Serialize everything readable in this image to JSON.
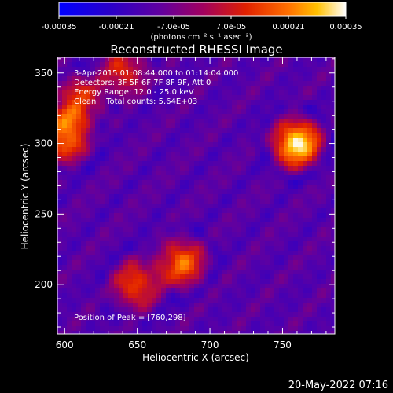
{
  "colorbar": {
    "tick_labels": [
      "-0.00035",
      "-0.00021",
      "-7.0e-05",
      "7.0e-05",
      "0.00021",
      "0.00035"
    ],
    "unit_label": "(photons cm⁻² s⁻¹ asec⁻²)",
    "range": [
      -0.00035,
      0.00035
    ],
    "colors": [
      "#0000ff",
      "#2a00c8",
      "#6000a0",
      "#a00060",
      "#e02000",
      "#ff7000",
      "#ffc000",
      "#ffffff"
    ]
  },
  "chart_data": {
    "type": "heatmap",
    "title": "Reconstructed RHESSI Image",
    "xlabel": "Heliocentric X (arcsec)",
    "ylabel": "Heliocentric Y (arcsec)",
    "xlim": [
      595,
      786
    ],
    "ylim": [
      165,
      361
    ],
    "x_ticks": [
      600,
      650,
      700,
      750
    ],
    "y_ticks": [
      200,
      250,
      300,
      350
    ],
    "peak": [
      760,
      298
    ],
    "sources": [
      {
        "x": 760,
        "y": 300,
        "peak": 1.0
      },
      {
        "x": 600,
        "y": 305,
        "peak": 0.8
      },
      {
        "x": 610,
        "y": 330,
        "peak": 0.6
      },
      {
        "x": 680,
        "y": 215,
        "peak": 0.7
      },
      {
        "x": 650,
        "y": 200,
        "peak": 0.6
      },
      {
        "x": 640,
        "y": 350,
        "peak": 0.5
      }
    ]
  },
  "annotations": {
    "time_range": "3-Apr-2015 01:08:44.000 to 01:14:04.000",
    "detectors": "Detectors: 3F 5F 6F 7F 8F 9F, Att 0",
    "energy_range": "Energy Range: 12.0 - 25.0 keV",
    "method": "Clean    Total counts: 5.64E+03",
    "peak_position": "Position of Peak = [760,298]"
  },
  "footer": {
    "date": "20-May-2022 07:16"
  }
}
